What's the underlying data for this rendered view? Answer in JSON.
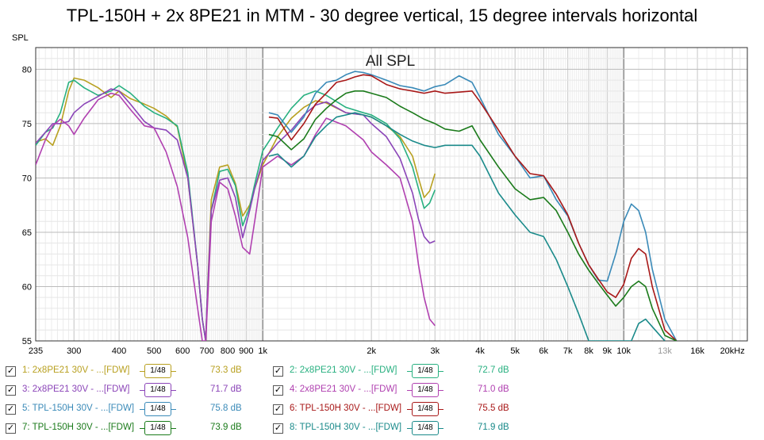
{
  "chart_data": {
    "type": "line",
    "title": "TPL-150H + 2x 8PE21 in MTM - 30 degree vertical, 15 degree intervals horizontal",
    "subtitle": "All SPL",
    "ylabel": "SPL",
    "xlabel": "",
    "x_scale": "log",
    "xlim": [
      235,
      22000
    ],
    "ylim": [
      55,
      82
    ],
    "grid": true,
    "x_tick_labels": [
      {
        "f": 235,
        "label": "235"
      },
      {
        "f": 300,
        "label": "300"
      },
      {
        "f": 400,
        "label": "400"
      },
      {
        "f": 500,
        "label": "500"
      },
      {
        "f": 600,
        "label": "600"
      },
      {
        "f": 700,
        "label": "700"
      },
      {
        "f": 800,
        "label": "800"
      },
      {
        "f": 900,
        "label": "900"
      },
      {
        "f": 1000,
        "label": "1k"
      },
      {
        "f": 2000,
        "label": "2k"
      },
      {
        "f": 3000,
        "label": "3k"
      },
      {
        "f": 4000,
        "label": "4k"
      },
      {
        "f": 5000,
        "label": "5k"
      },
      {
        "f": 6000,
        "label": "6k"
      },
      {
        "f": 7000,
        "label": "7k"
      },
      {
        "f": 8000,
        "label": "8k"
      },
      {
        "f": 9000,
        "label": "9k"
      },
      {
        "f": 10000,
        "label": "10k"
      },
      {
        "f": 13000,
        "label": "13k",
        "muted": true
      },
      {
        "f": 16000,
        "label": "16k"
      },
      {
        "f": 20000,
        "label": "20kHz"
      }
    ],
    "y_ticks": [
      55,
      60,
      65,
      70,
      75,
      80
    ],
    "series": [
      {
        "name": "1: 2x8PE21 30V - ...[FDW]",
        "smoothing": "1/48",
        "value_label": "73.3 dB",
        "color": "#b8a020",
        "x": [
          235,
          250,
          262,
          275,
          290,
          300,
          320,
          350,
          380,
          400,
          430,
          470,
          500,
          540,
          580,
          620,
          660,
          680,
          695,
          700,
          720,
          760,
          800,
          840,
          880,
          920,
          950,
          1000,
          1100,
          1200,
          1300,
          1400,
          1500,
          1700,
          1900,
          2000,
          2200,
          2400,
          2600,
          2700,
          2800,
          2900,
          3000
        ],
        "y": [
          73.3,
          73.6,
          73.0,
          74.8,
          78.0,
          79.2,
          79.0,
          78.3,
          77.4,
          78.0,
          77.3,
          76.8,
          76.4,
          75.7,
          74.7,
          70.0,
          62.0,
          57.0,
          55.0,
          58.0,
          68.0,
          71.0,
          71.2,
          69.5,
          66.5,
          67.5,
          69.0,
          71.2,
          73.8,
          75.5,
          76.5,
          77.1,
          76.9,
          76.0,
          75.8,
          75.6,
          74.8,
          73.8,
          72.0,
          70.0,
          68.2,
          68.8,
          70.4
        ]
      },
      {
        "name": "2: 2x8PE21 30V - ...[FDW]",
        "smoothing": "1/48",
        "value_label": "72.7 dB",
        "color": "#28b080",
        "x": [
          235,
          250,
          262,
          275,
          290,
          300,
          320,
          350,
          380,
          400,
          430,
          470,
          500,
          540,
          580,
          620,
          660,
          680,
          695,
          700,
          720,
          760,
          800,
          840,
          880,
          920,
          950,
          1000,
          1100,
          1200,
          1300,
          1400,
          1500,
          1700,
          1900,
          2000,
          2200,
          2400,
          2600,
          2700,
          2800,
          2900,
          3000
        ],
        "y": [
          73.0,
          74.2,
          74.6,
          76.0,
          78.8,
          79.0,
          78.3,
          77.6,
          78.0,
          78.5,
          77.8,
          76.6,
          76.0,
          75.5,
          74.8,
          70.5,
          62.0,
          57.0,
          55.0,
          58.0,
          67.0,
          70.6,
          70.8,
          69.3,
          65.6,
          67.3,
          69.4,
          72.5,
          74.6,
          76.4,
          77.6,
          78.0,
          77.6,
          76.5,
          76.0,
          75.8,
          75.0,
          73.6,
          71.0,
          69.0,
          67.2,
          67.7,
          68.9
        ]
      },
      {
        "name": "3: 2x8PE21 30V - ...[FDW]",
        "smoothing": "1/48",
        "value_label": "71.7 dB",
        "color": "#8b45b8",
        "x": [
          235,
          250,
          262,
          275,
          290,
          300,
          320,
          350,
          380,
          400,
          430,
          470,
          500,
          540,
          580,
          620,
          660,
          680,
          695,
          700,
          720,
          760,
          800,
          840,
          880,
          920,
          950,
          1000,
          1100,
          1200,
          1300,
          1400,
          1500,
          1700,
          1900,
          2000,
          2200,
          2400,
          2600,
          2700,
          2800,
          2900,
          3000
        ],
        "y": [
          73.2,
          74.2,
          75.0,
          75.0,
          75.2,
          76.0,
          76.8,
          77.5,
          78.2,
          78.0,
          76.8,
          75.2,
          74.6,
          74.4,
          73.5,
          70.0,
          62.0,
          57.0,
          55.0,
          58.0,
          67.0,
          69.8,
          70.0,
          68.2,
          64.5,
          67.0,
          69.0,
          71.6,
          73.2,
          74.4,
          75.8,
          76.7,
          77.0,
          76.0,
          75.8,
          75.0,
          73.8,
          71.8,
          68.6,
          66.2,
          64.6,
          64.0,
          64.2
        ]
      },
      {
        "name": "4: 2x8PE21 30V - ...[FDW]",
        "smoothing": "1/48",
        "value_label": "71.0 dB",
        "color": "#b040b0",
        "x": [
          235,
          250,
          262,
          275,
          290,
          300,
          320,
          350,
          380,
          400,
          430,
          470,
          500,
          540,
          580,
          620,
          660,
          680,
          695,
          700,
          720,
          760,
          800,
          840,
          880,
          920,
          950,
          1000,
          1100,
          1200,
          1300,
          1400,
          1500,
          1700,
          1900,
          2000,
          2200,
          2400,
          2600,
          2700,
          2800,
          2900,
          3000
        ],
        "y": [
          71.2,
          73.5,
          74.8,
          75.4,
          74.8,
          74.0,
          75.5,
          77.2,
          77.8,
          77.6,
          76.3,
          74.8,
          74.6,
          72.4,
          69.2,
          64.5,
          58.0,
          55.0,
          55.0,
          57.0,
          66.0,
          69.6,
          69.0,
          66.5,
          63.6,
          63.0,
          66.0,
          71.0,
          72.0,
          71.2,
          72.0,
          74.0,
          75.5,
          74.8,
          73.5,
          72.4,
          71.2,
          70.0,
          66.0,
          62.0,
          59.0,
          57.0,
          56.4
        ]
      },
      {
        "name": "5: TPL-150H 30V - ...[FDW]",
        "smoothing": "1/48",
        "value_label": "75.8 dB",
        "color": "#3a8ab8",
        "x": [
          1040,
          1100,
          1200,
          1300,
          1400,
          1500,
          1600,
          1700,
          1800,
          1900,
          2000,
          2200,
          2400,
          2600,
          2800,
          3000,
          3200,
          3500,
          3800,
          4000,
          4500,
          5000,
          5500,
          6000,
          6500,
          7000,
          7500,
          8000,
          8500,
          9000,
          9500,
          10000,
          10500,
          11000,
          11500,
          12000,
          13000,
          14000
        ],
        "y": [
          76.0,
          75.8,
          74.2,
          75.6,
          77.8,
          78.8,
          79.0,
          79.5,
          79.8,
          79.7,
          79.5,
          79.0,
          78.5,
          78.3,
          78.0,
          78.4,
          78.6,
          79.4,
          78.8,
          77.4,
          74.0,
          72.0,
          70.0,
          70.2,
          68.0,
          66.5,
          64.0,
          62.0,
          60.6,
          60.5,
          63.0,
          66.0,
          67.6,
          67.0,
          65.0,
          61.6,
          57.0,
          55.0
        ]
      },
      {
        "name": "6: TPL-150H 30V - ...[FDW]",
        "smoothing": "1/48",
        "value_label": "75.5 dB",
        "color": "#a81818",
        "x": [
          1040,
          1100,
          1200,
          1300,
          1400,
          1500,
          1600,
          1700,
          1800,
          1900,
          2000,
          2200,
          2400,
          2600,
          2800,
          3000,
          3200,
          3500,
          3800,
          4000,
          4500,
          5000,
          5500,
          6000,
          6500,
          7000,
          7500,
          8000,
          8500,
          9000,
          9500,
          10000,
          10500,
          11000,
          11500,
          12000,
          13000,
          14000
        ],
        "y": [
          75.6,
          75.5,
          73.5,
          75.0,
          76.8,
          77.8,
          78.8,
          79.0,
          79.3,
          79.5,
          79.4,
          78.6,
          78.2,
          78.0,
          77.8,
          78.0,
          77.8,
          77.9,
          78.0,
          77.0,
          74.4,
          72.0,
          70.4,
          70.2,
          68.5,
          66.6,
          64.0,
          62.0,
          60.7,
          59.5,
          59.0,
          60.2,
          62.6,
          63.5,
          63.0,
          60.0,
          56.0,
          55.0
        ]
      },
      {
        "name": "7: TPL-150H 30V - ...[FDW]",
        "smoothing": "1/48",
        "value_label": "73.9 dB",
        "color": "#1a7a1a",
        "x": [
          1040,
          1100,
          1200,
          1300,
          1400,
          1500,
          1600,
          1700,
          1800,
          1900,
          2000,
          2200,
          2400,
          2600,
          2800,
          3000,
          3200,
          3500,
          3800,
          4000,
          4500,
          5000,
          5500,
          6000,
          6500,
          7000,
          7500,
          8000,
          8500,
          9000,
          9500,
          10000,
          10500,
          11000,
          11500,
          12000,
          13000,
          14000
        ],
        "y": [
          74.0,
          73.8,
          72.6,
          73.6,
          75.4,
          76.4,
          77.2,
          77.8,
          78.0,
          78.0,
          77.8,
          77.4,
          76.6,
          76.0,
          75.4,
          75.0,
          74.5,
          74.3,
          74.8,
          73.5,
          71.0,
          69.0,
          68.0,
          68.2,
          67.0,
          65.0,
          63.0,
          61.5,
          60.3,
          59.2,
          58.2,
          59.0,
          60.0,
          60.5,
          60.0,
          58.0,
          55.5,
          55.0
        ]
      },
      {
        "name": "8: TPL-150H 30V - ...[FDW]",
        "smoothing": "1/48",
        "value_label": "71.9 dB",
        "color": "#1a8a8a",
        "x": [
          1040,
          1100,
          1200,
          1300,
          1400,
          1500,
          1600,
          1700,
          1800,
          1900,
          2000,
          2200,
          2400,
          2600,
          2800,
          3000,
          3200,
          3500,
          3800,
          4000,
          4500,
          5000,
          5500,
          6000,
          6500,
          7000,
          7500,
          8000,
          8500,
          9000,
          9500,
          10000,
          10500,
          11000,
          11500,
          12000,
          13000
        ],
        "y": [
          72.0,
          72.2,
          71.0,
          72.0,
          73.8,
          74.8,
          75.6,
          75.8,
          76.0,
          75.8,
          75.6,
          74.8,
          74.0,
          73.4,
          73.0,
          72.8,
          73.0,
          73.0,
          73.0,
          72.0,
          68.6,
          66.6,
          65.0,
          64.6,
          62.5,
          60.0,
          57.5,
          55.0,
          55.0,
          55.0,
          55.0,
          55.0,
          55.0,
          56.6,
          57.0,
          56.3,
          55.0
        ]
      }
    ]
  }
}
